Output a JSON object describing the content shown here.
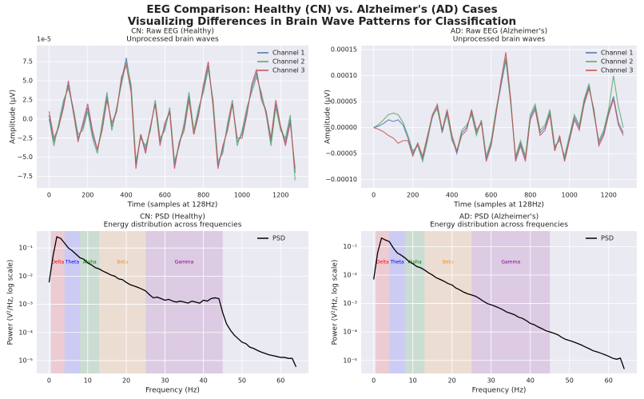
{
  "title": "EEG Comparison: Healthy (CN) vs. Alzheimer's (AD) Cases",
  "subtitle": "Visualizing Differences in Brain Wave Patterns for Classification",
  "chart_data": [
    {
      "type": "line",
      "title": "CN: Raw EEG (Healthy)",
      "subtitle": "Unprocessed brain waves",
      "x_label": "Time (samples at 128Hz)",
      "y_label": "Amplitude (µV)",
      "offset_label": "1e-5",
      "grid": true,
      "legend": "upper right",
      "x": [
        0,
        25,
        50,
        75,
        100,
        125,
        150,
        175,
        200,
        225,
        250,
        275,
        300,
        325,
        350,
        375,
        400,
        425,
        450,
        475,
        500,
        525,
        550,
        575,
        600,
        625,
        650,
        675,
        700,
        725,
        750,
        775,
        800,
        825,
        850,
        875,
        900,
        925,
        950,
        975,
        1000,
        1025,
        1050,
        1075,
        1100,
        1125,
        1150,
        1175,
        1200,
        1225,
        1250,
        1275
      ],
      "xlim": [
        -64,
        1344
      ],
      "xticks": [
        0,
        200,
        400,
        600,
        800,
        1000,
        1200
      ],
      "ylim": [
        -9,
        9.6
      ],
      "yticks": [
        {
          "value": -7.5,
          "label": "−7.5"
        },
        {
          "value": -5,
          "label": "−5.0"
        },
        {
          "value": -2.5,
          "label": "−2.5"
        },
        {
          "value": 0,
          "label": "0.0"
        },
        2.5,
        {
          "value": 5,
          "label": "5.0"
        },
        7.5
      ],
      "series": [
        {
          "name": "Channel 1",
          "color": "#4c72b0",
          "values": [
            0.5,
            -3,
            -1,
            2,
            4.5,
            1,
            -2.5,
            -1,
            1.5,
            -2,
            -4,
            -1,
            3,
            -1,
            1,
            5,
            8,
            4,
            -6,
            -2,
            -4,
            -1,
            2,
            -3,
            -1,
            1,
            -6,
            -3,
            -1,
            3,
            -2,
            1,
            4,
            7,
            2,
            -6,
            -4,
            -1,
            2,
            -3,
            -2,
            1,
            4,
            6,
            3,
            1,
            -3,
            2,
            -1,
            -3,
            0,
            -7
          ]
        },
        {
          "name": "Channel 2",
          "color": "#55a868",
          "values": [
            0,
            -3.5,
            -0.5,
            2.5,
            4,
            1.5,
            -2,
            -1.5,
            1,
            -2.5,
            -4.5,
            -0.5,
            3.5,
            -1.5,
            1.5,
            4.5,
            7.5,
            4.5,
            -5.5,
            -2.5,
            -3.5,
            -1.5,
            2.5,
            -2.5,
            -1.5,
            1.5,
            -5.5,
            -3.5,
            -0.5,
            3.5,
            -1.5,
            1.5,
            3.5,
            6.5,
            2.5,
            -5.5,
            -4.5,
            -0.5,
            2.5,
            -3.5,
            -1.5,
            1.5,
            3.5,
            5.5,
            3.5,
            0.5,
            -3.5,
            1.5,
            -1.5,
            -2.5,
            0.5,
            -8
          ]
        },
        {
          "name": "Channel 3",
          "color": "#c44e52",
          "values": [
            1,
            -2.5,
            -1,
            1.5,
            5,
            1,
            -3,
            -0.5,
            2,
            -1.5,
            -4,
            -1.5,
            2.5,
            -0.5,
            1,
            5.5,
            7,
            3.5,
            -6.5,
            -2,
            -4.5,
            -1,
            2,
            -3.5,
            -0.5,
            1,
            -6.5,
            -3,
            -1.5,
            2.5,
            -2,
            0.5,
            4.5,
            7.5,
            1.5,
            -6.5,
            -3.5,
            -1.5,
            2,
            -2.5,
            -2.5,
            0.5,
            4.5,
            6.5,
            2.5,
            1,
            -2.5,
            2.5,
            -1,
            -3.5,
            -0.5,
            -6.5
          ]
        }
      ]
    },
    {
      "type": "line",
      "title": "AD: Raw EEG (Alzheimer's)",
      "subtitle": "Unprocessed brain waves",
      "x_label": "Time (samples at 128Hz)",
      "y_label": "Amplitude (µV)",
      "grid": true,
      "legend": "upper right",
      "x": [
        0,
        25,
        50,
        75,
        100,
        125,
        150,
        175,
        200,
        225,
        250,
        275,
        300,
        325,
        350,
        375,
        400,
        425,
        450,
        475,
        500,
        525,
        550,
        575,
        600,
        625,
        650,
        675,
        700,
        725,
        750,
        775,
        800,
        825,
        850,
        875,
        900,
        925,
        950,
        975,
        1000,
        1025,
        1050,
        1075,
        1100,
        1125,
        1150,
        1175,
        1200,
        1225,
        1250,
        1275
      ],
      "xlim": [
        -64,
        1344
      ],
      "xticks": [
        0,
        200,
        400,
        600,
        800,
        1000,
        1200
      ],
      "ylim": [
        -0.000116,
        0.000158
      ],
      "yticks": [
        {
          "value": -0.0001,
          "label": "−0.00010"
        },
        {
          "value": -5e-05,
          "label": "−0.00005"
        },
        {
          "value": 0,
          "label": "0.00000"
        },
        {
          "value": 5e-05,
          "label": "0.00005"
        },
        {
          "value": 0.0001,
          "label": "0.00010"
        },
        {
          "value": 0.00015,
          "label": "0.00015"
        }
      ],
      "series": [
        {
          "name": "Channel 1",
          "color": "#4c72b0",
          "values": [
            0,
            3e-06,
            8e-06,
            1.5e-05,
            1.2e-05,
            1.5e-05,
            5e-06,
            -2e-05,
            -5e-05,
            -3e-05,
            -6e-05,
            -2e-05,
            2e-05,
            4e-05,
            -1e-05,
            3e-05,
            -2e-05,
            -5e-05,
            -1e-05,
            0,
            3e-05,
            -1e-05,
            1e-05,
            -6e-05,
            -3e-05,
            3e-05,
            8e-05,
            0.00013,
            5e-05,
            -6e-05,
            -3e-05,
            -6e-05,
            2e-05,
            4e-05,
            -1e-05,
            0,
            3e-05,
            -4e-05,
            -2e-05,
            -6e-05,
            -2e-05,
            2e-05,
            0,
            5e-05,
            8e-05,
            3e-05,
            -3e-05,
            -1e-05,
            3e-05,
            6e-05,
            1e-05,
            -1e-05
          ]
        },
        {
          "name": "Channel 2",
          "color": "#55a868",
          "values": [
            0,
            6e-06,
            1.5e-05,
            2.5e-05,
            2.8e-05,
            2.5e-05,
            1e-05,
            -1.5e-05,
            -4.5e-05,
            -3.5e-05,
            -6.5e-05,
            -2.5e-05,
            2.5e-05,
            3.5e-05,
            -5e-06,
            2.5e-05,
            -2.5e-05,
            -4.5e-05,
            -5e-06,
            5e-06,
            2.5e-05,
            -1.5e-05,
            1.5e-05,
            -5.5e-05,
            -2.5e-05,
            3.5e-05,
            8.5e-05,
            0.000135,
            4.5e-05,
            -5.5e-05,
            -2.5e-05,
            -5.5e-05,
            2.5e-05,
            4.5e-05,
            -5e-06,
            5e-06,
            3.5e-05,
            -3.5e-05,
            -2.5e-05,
            -5.5e-05,
            -1.5e-05,
            2.5e-05,
            5e-06,
            5.5e-05,
            8.5e-05,
            2.5e-05,
            -2.5e-05,
            -5e-06,
            3.5e-05,
            0.0001,
            4e-05,
            0
          ]
        },
        {
          "name": "Channel 3",
          "color": "#c44e52",
          "values": [
            0,
            -3e-06,
            -8e-06,
            -1.5e-05,
            -2e-05,
            -3e-05,
            -2.5e-05,
            -2.5e-05,
            -5.5e-05,
            -3e-05,
            -5.5e-05,
            -1.5e-05,
            2.5e-05,
            4.5e-05,
            -5e-06,
            3.5e-05,
            -1.5e-05,
            -4.5e-05,
            -1.5e-05,
            -5e-06,
            3.5e-05,
            -5e-06,
            1e-05,
            -6.5e-05,
            -3.5e-05,
            2.5e-05,
            9e-05,
            0.000145,
            5.5e-05,
            -6.5e-05,
            -3.5e-05,
            -6.5e-05,
            1.5e-05,
            3.5e-05,
            -1.5e-05,
            -5e-06,
            2.5e-05,
            -4.5e-05,
            -1.5e-05,
            -6.5e-05,
            -2.5e-05,
            1.5e-05,
            -5e-06,
            4.5e-05,
            7.5e-05,
            3.5e-05,
            -3.5e-05,
            -1.5e-05,
            2.5e-05,
            5.5e-05,
            5e-06,
            -1.5e-05
          ]
        }
      ]
    },
    {
      "type": "line",
      "title": "CN: PSD (Healthy)",
      "subtitle": "Energy distribution across frequencies",
      "x_label": "Frequency (Hz)",
      "y_label": "Power (V²/Hz, log scale)",
      "log_y": true,
      "grid": true,
      "legend": "upper right",
      "x": [
        0,
        1,
        2,
        3,
        4,
        5,
        6,
        7,
        8,
        9,
        10,
        11,
        12,
        13,
        14,
        15,
        16,
        17,
        18,
        19,
        20,
        21,
        22,
        23,
        24,
        25,
        26,
        27,
        28,
        29,
        30,
        31,
        32,
        33,
        34,
        35,
        36,
        37,
        38,
        39,
        40,
        41,
        42,
        43,
        44,
        45,
        46,
        47,
        48,
        49,
        50,
        51,
        52,
        53,
        54,
        55,
        56,
        57,
        58,
        59,
        60,
        61,
        62,
        63,
        64
      ],
      "xlim": [
        -3.2,
        67.2
      ],
      "xticks": [
        0,
        10,
        20,
        30,
        40,
        50,
        60
      ],
      "ylim": [
        3.5e-06,
        0.4
      ],
      "yticks": [
        {
          "value": 1e-05,
          "label": "10⁻⁵"
        },
        {
          "value": 0.0001,
          "label": "10⁻⁴"
        },
        {
          "value": 0.001,
          "label": "10⁻³"
        },
        {
          "value": 0.01,
          "label": "10⁻²"
        },
        {
          "value": 0.1,
          "label": "10⁻¹"
        }
      ],
      "bands": [
        {
          "name": "Delta",
          "range": [
            0.5,
            4
          ],
          "color": "red"
        },
        {
          "name": "Theta",
          "range": [
            4,
            8
          ],
          "color": "blue"
        },
        {
          "name": "Alpha",
          "range": [
            8,
            13
          ],
          "color": "green"
        },
        {
          "name": "Beta",
          "range": [
            13,
            25
          ],
          "color": "darkorange"
        },
        {
          "name": "Gamma",
          "range": [
            25,
            45
          ],
          "color": "purple"
        }
      ],
      "series": [
        {
          "name": "PSD",
          "color": "black",
          "values": [
            0.006,
            0.05,
            0.25,
            0.22,
            0.15,
            0.1,
            0.08,
            0.06,
            0.045,
            0.04,
            0.03,
            0.025,
            0.02,
            0.018,
            0.015,
            0.013,
            0.011,
            0.01,
            0.008,
            0.0075,
            0.006,
            0.005,
            0.0045,
            0.004,
            0.0035,
            0.003,
            0.0022,
            0.0017,
            0.0018,
            0.0016,
            0.0014,
            0.0015,
            0.0013,
            0.0012,
            0.0013,
            0.0012,
            0.0011,
            0.0013,
            0.0012,
            0.0011,
            0.0014,
            0.0013,
            0.0016,
            0.0017,
            0.0016,
            0.0005,
            0.0002,
            0.00012,
            8e-05,
            6e-05,
            4.5e-05,
            4e-05,
            3e-05,
            2.7e-05,
            2.3e-05,
            2e-05,
            1.8e-05,
            1.6e-05,
            1.5e-05,
            1.4e-05,
            1.3e-05,
            1.3e-05,
            1.2e-05,
            1.2e-05,
            6e-06
          ]
        }
      ]
    },
    {
      "type": "line",
      "title": "AD: PSD (Alzheimer's)",
      "subtitle": "Energy distribution across frequencies",
      "x_label": "Frequency (Hz)",
      "y_label": "Power (V²/Hz, log scale)",
      "log_y": true,
      "grid": true,
      "legend": "upper right",
      "x": [
        0,
        1,
        2,
        3,
        4,
        5,
        6,
        7,
        8,
        9,
        10,
        11,
        12,
        13,
        14,
        15,
        16,
        17,
        18,
        19,
        20,
        21,
        22,
        23,
        24,
        25,
        26,
        27,
        28,
        29,
        30,
        31,
        32,
        33,
        34,
        35,
        36,
        37,
        38,
        39,
        40,
        41,
        42,
        43,
        44,
        45,
        46,
        47,
        48,
        49,
        50,
        51,
        52,
        53,
        54,
        55,
        56,
        57,
        58,
        59,
        60,
        61,
        62,
        63,
        64
      ],
      "xlim": [
        -3.2,
        67.2
      ],
      "xticks": [
        0,
        10,
        20,
        30,
        40,
        50,
        60
      ],
      "ylim": [
        3.5e-06,
        0.35
      ],
      "yticks": [
        {
          "value": 1e-05,
          "label": "10⁻⁵"
        },
        {
          "value": 0.0001,
          "label": "10⁻⁴"
        },
        {
          "value": 0.001,
          "label": "10⁻³"
        },
        {
          "value": 0.01,
          "label": "10⁻²"
        },
        {
          "value": 0.1,
          "label": "10⁻¹"
        }
      ],
      "bands": [
        {
          "name": "Delta",
          "range": [
            0.5,
            4
          ],
          "color": "red"
        },
        {
          "name": "Theta",
          "range": [
            4,
            8
          ],
          "color": "blue"
        },
        {
          "name": "Alpha",
          "range": [
            8,
            13
          ],
          "color": "green"
        },
        {
          "name": "Beta",
          "range": [
            13,
            25
          ],
          "color": "darkorange"
        },
        {
          "name": "Gamma",
          "range": [
            25,
            45
          ],
          "color": "purple"
        }
      ],
      "series": [
        {
          "name": "PSD",
          "color": "black",
          "values": [
            0.007,
            0.06,
            0.2,
            0.17,
            0.15,
            0.09,
            0.06,
            0.05,
            0.04,
            0.03,
            0.025,
            0.02,
            0.018,
            0.015,
            0.012,
            0.01,
            0.008,
            0.007,
            0.006,
            0.005,
            0.0045,
            0.0035,
            0.003,
            0.0025,
            0.0022,
            0.002,
            0.0018,
            0.0015,
            0.0012,
            0.001,
            0.0009,
            0.0008,
            0.0007,
            0.0006,
            0.0005,
            0.00045,
            0.0004,
            0.00033,
            0.0003,
            0.00025,
            0.0002,
            0.00018,
            0.00015,
            0.00013,
            0.00011,
            0.0001,
            9e-05,
            8e-05,
            6.5e-05,
            5.5e-05,
            5e-05,
            4.5e-05,
            4e-05,
            3.5e-05,
            3e-05,
            2.6e-05,
            2.2e-05,
            2e-05,
            1.8e-05,
            1.6e-05,
            1.4e-05,
            1.2e-05,
            1.1e-05,
            1.2e-05,
            5e-06
          ]
        }
      ]
    }
  ]
}
